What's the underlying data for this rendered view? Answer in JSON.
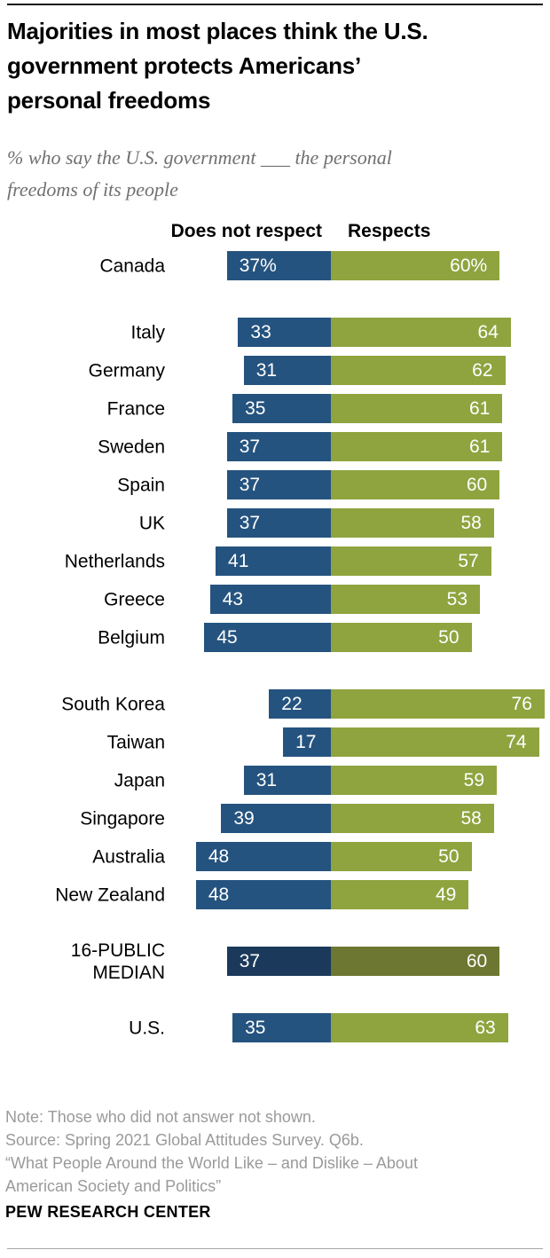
{
  "header": {
    "title_lines": [
      "Majorities in most places think the U.S.",
      "government protects Americans’",
      "personal freedoms"
    ],
    "subtitle_lines": [
      "% who say the U.S. government ___ the personal",
      "freedoms of its people"
    ]
  },
  "chart_data": {
    "type": "bar",
    "orientation": "horizontal-diverging",
    "title": "Majorities in most places think the U.S. government protects Americans’ personal freedoms",
    "subtitle": "% who say the U.S. government ___ the personal freedoms of its people",
    "unit": "percent",
    "legend": [
      {
        "label": "Does not respect",
        "color": "#25537F"
      },
      {
        "label": "Respects",
        "color": "#8FA43F"
      }
    ],
    "colors": {
      "does_not_respect": "#25537F",
      "respects": "#8FA43F",
      "median_does_not_respect": "#1B3A5B",
      "median_respects": "#6D7731",
      "value_text": "#ffffff"
    },
    "groups": [
      {
        "rows": [
          {
            "label": "Canada",
            "does_not_respect": 37,
            "respects": 60,
            "left_text": "37%",
            "right_text": "60%"
          }
        ]
      },
      {
        "rows": [
          {
            "label": "Italy",
            "does_not_respect": 33,
            "respects": 64,
            "left_text": "33",
            "right_text": "64"
          },
          {
            "label": "Germany",
            "does_not_respect": 31,
            "respects": 62,
            "left_text": "31",
            "right_text": "62"
          },
          {
            "label": "France",
            "does_not_respect": 35,
            "respects": 61,
            "left_text": "35",
            "right_text": "61"
          },
          {
            "label": "Sweden",
            "does_not_respect": 37,
            "respects": 61,
            "left_text": "37",
            "right_text": "61"
          },
          {
            "label": "Spain",
            "does_not_respect": 37,
            "respects": 60,
            "left_text": "37",
            "right_text": "60"
          },
          {
            "label": "UK",
            "does_not_respect": 37,
            "respects": 58,
            "left_text": "37",
            "right_text": "58"
          },
          {
            "label": "Netherlands",
            "does_not_respect": 41,
            "respects": 57,
            "left_text": "41",
            "right_text": "57"
          },
          {
            "label": "Greece",
            "does_not_respect": 43,
            "respects": 53,
            "left_text": "43",
            "right_text": "53"
          },
          {
            "label": "Belgium",
            "does_not_respect": 45,
            "respects": 50,
            "left_text": "45",
            "right_text": "50"
          }
        ]
      },
      {
        "rows": [
          {
            "label": "South Korea",
            "does_not_respect": 22,
            "respects": 76,
            "left_text": "22",
            "right_text": "76"
          },
          {
            "label": "Taiwan",
            "does_not_respect": 17,
            "respects": 74,
            "left_text": "17",
            "right_text": "74"
          },
          {
            "label": "Japan",
            "does_not_respect": 31,
            "respects": 59,
            "left_text": "31",
            "right_text": "59"
          },
          {
            "label": "Singapore",
            "does_not_respect": 39,
            "respects": 58,
            "left_text": "39",
            "right_text": "58"
          },
          {
            "label": "Australia",
            "does_not_respect": 48,
            "respects": 50,
            "left_text": "48",
            "right_text": "50"
          },
          {
            "label": "New Zealand",
            "does_not_respect": 48,
            "respects": 49,
            "left_text": "48",
            "right_text": "49"
          }
        ]
      },
      {
        "rows": [
          {
            "label": "16-PUBLIC MEDIAN",
            "does_not_respect": 37,
            "respects": 60,
            "left_text": "37",
            "right_text": "60",
            "is_median": true
          }
        ]
      },
      {
        "rows": [
          {
            "label": "U.S.",
            "does_not_respect": 35,
            "respects": 63,
            "left_text": "35",
            "right_text": "63"
          }
        ]
      }
    ]
  },
  "footer": {
    "lines": [
      "Note: Those who did not answer not shown.",
      "Source: Spring 2021 Global Attitudes Survey. Q6b.",
      "“What People Around the World Like – and Dislike – About",
      "American Society and Politics”"
    ],
    "brand": "PEW RESEARCH CENTER"
  }
}
